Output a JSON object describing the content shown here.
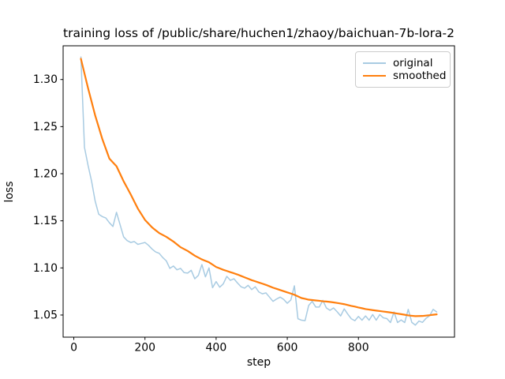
{
  "chart_data": {
    "type": "line",
    "title": "training loss of /public/share/huchen1/zhaoy/baichuan-7b-lora-2",
    "xlabel": "step",
    "ylabel": "loss",
    "xlim": [
      -30,
      1070
    ],
    "ylim": [
      1.0265,
      1.3358
    ],
    "x_ticks": [
      0,
      200,
      400,
      600,
      800
    ],
    "y_ticks": [
      1.05,
      1.1,
      1.15,
      1.2,
      1.25,
      1.3
    ],
    "grid": false,
    "legend_position": "upper right",
    "background_color": "#ffffff",
    "spine_color": "#000000",
    "x": [
      20,
      30,
      40,
      50,
      60,
      70,
      80,
      90,
      100,
      110,
      120,
      130,
      140,
      150,
      160,
      170,
      180,
      190,
      200,
      210,
      220,
      230,
      240,
      250,
      260,
      270,
      280,
      290,
      300,
      310,
      320,
      330,
      340,
      350,
      360,
      370,
      380,
      390,
      400,
      410,
      420,
      430,
      440,
      450,
      460,
      470,
      480,
      490,
      500,
      510,
      520,
      530,
      540,
      550,
      560,
      570,
      580,
      590,
      600,
      610,
      620,
      630,
      640,
      650,
      660,
      670,
      680,
      690,
      700,
      710,
      720,
      730,
      740,
      750,
      760,
      770,
      780,
      790,
      800,
      810,
      820,
      830,
      840,
      850,
      860,
      870,
      880,
      890,
      900,
      910,
      920,
      930,
      940,
      950,
      960,
      970,
      980,
      990,
      1000,
      1010,
      1020
    ],
    "series": [
      {
        "name": "original",
        "color": "#a8cbe2",
        "linewidth": 1.5,
        "values": [
          1.324,
          1.228,
          1.209,
          1.192,
          1.171,
          1.157,
          1.1545,
          1.153,
          1.148,
          1.144,
          1.159,
          1.146,
          1.133,
          1.129,
          1.127,
          1.128,
          1.125,
          1.126,
          1.127,
          1.124,
          1.12,
          1.117,
          1.1155,
          1.111,
          1.1075,
          1.0995,
          1.102,
          1.098,
          1.0995,
          1.095,
          1.0945,
          1.0975,
          1.0885,
          1.092,
          1.1035,
          1.0905,
          1.1,
          1.079,
          1.0855,
          1.0795,
          1.083,
          1.091,
          1.0868,
          1.0885,
          1.084,
          1.08,
          1.0785,
          1.0815,
          1.077,
          1.08,
          1.0745,
          1.0725,
          1.0735,
          1.069,
          1.0645,
          1.067,
          1.069,
          1.0665,
          1.0625,
          1.066,
          1.081,
          1.046,
          1.0445,
          1.044,
          1.06,
          1.0645,
          1.0585,
          1.0585,
          1.0655,
          1.0575,
          1.055,
          1.0575,
          1.0535,
          1.049,
          1.0565,
          1.051,
          1.046,
          1.044,
          1.0485,
          1.0445,
          1.049,
          1.0445,
          1.0505,
          1.0445,
          1.0505,
          1.047,
          1.0462,
          1.042,
          1.0532,
          1.042,
          1.0448,
          1.042,
          1.056,
          1.0422,
          1.0393,
          1.0436,
          1.0422,
          1.0465,
          1.0492,
          1.056,
          1.0532
        ]
      },
      {
        "name": "smoothed",
        "color": "#ff7f0e",
        "linewidth": 2.2,
        "values": [
          1.322,
          1.3065,
          1.291,
          1.2765,
          1.262,
          1.2495,
          1.237,
          1.2265,
          1.216,
          1.212,
          1.208,
          1.2,
          1.192,
          1.185,
          1.178,
          1.1705,
          1.163,
          1.157,
          1.151,
          1.147,
          1.143,
          1.14,
          1.137,
          1.135,
          1.133,
          1.1305,
          1.128,
          1.125,
          1.122,
          1.12,
          1.118,
          1.1155,
          1.113,
          1.111,
          1.109,
          1.1075,
          1.106,
          1.1035,
          1.101,
          1.0995,
          1.098,
          1.0968,
          1.0955,
          1.0943,
          1.093,
          1.0915,
          1.09,
          1.0885,
          1.087,
          1.0858,
          1.0845,
          1.0833,
          1.082,
          1.0805,
          1.079,
          1.0778,
          1.0765,
          1.0753,
          1.074,
          1.0728,
          1.0715,
          1.0698,
          1.068,
          1.0672,
          1.0663,
          1.0659,
          1.0655,
          1.0651,
          1.0646,
          1.0643,
          1.0639,
          1.0634,
          1.0628,
          1.0622,
          1.0615,
          1.0606,
          1.0597,
          1.0589,
          1.058,
          1.0572,
          1.0563,
          1.0558,
          1.0552,
          1.0547,
          1.0542,
          1.0537,
          1.0532,
          1.0527,
          1.0521,
          1.0515,
          1.0509,
          1.0503,
          1.0496,
          1.0492,
          1.0488,
          1.0489,
          1.049,
          1.0494,
          1.0498,
          1.0503,
          1.0507
        ]
      }
    ]
  }
}
